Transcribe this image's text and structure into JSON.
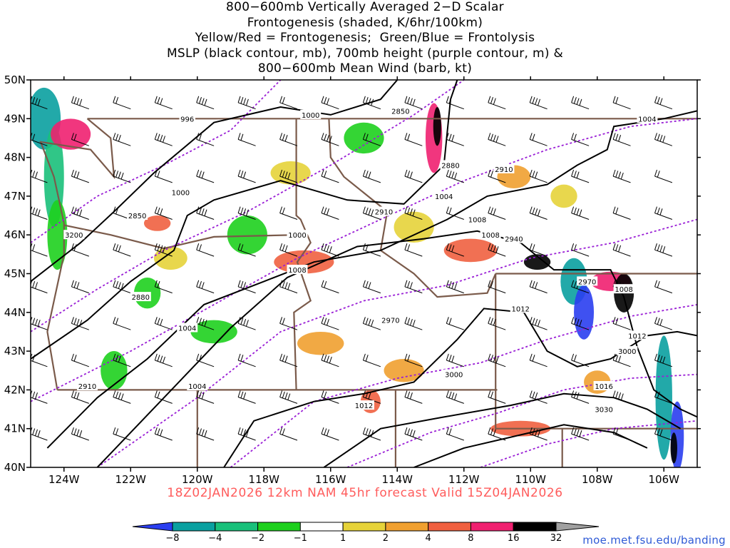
{
  "title_lines": [
    "800−600mb Vertically Averaged 2−D Scalar",
    "Frontogenesis (shaded, K/6hr/100km)",
    "Yellow/Red = Frontogenesis;  Green/Blue = Frontolysis",
    "MSLP (black contour, mb), 700mb height (purple contour, m) &",
    "800−600mb Mean Wind (barb, kt)"
  ],
  "forecast_label": "18Z02JAN2026 12km NAM 45hr forecast Valid 15Z04JAN2026",
  "source_label": "moe.met.fsu.edu/banding",
  "map": {
    "lon_range": [
      -125,
      -105
    ],
    "lat_range": [
      40,
      50
    ],
    "lon_ticks": [
      "124W",
      "122W",
      "120W",
      "118W",
      "116W",
      "114W",
      "112W",
      "110W",
      "108W",
      "106W"
    ],
    "lat_ticks": [
      "50N",
      "49N",
      "48N",
      "47N",
      "46N",
      "45N",
      "44N",
      "43N",
      "42N",
      "41N",
      "40N"
    ],
    "mslp_labels": [
      "996",
      "1000",
      "1000",
      "1004",
      "1008",
      "1000",
      "1004",
      "1008",
      "1012",
      "1004",
      "1008",
      "1012",
      "1016",
      "1012",
      "1004",
      "1008"
    ],
    "height_labels": [
      "2850",
      "2850",
      "2880",
      "2880",
      "2910",
      "2910",
      "2910",
      "2940",
      "2970",
      "2970",
      "3000",
      "3000",
      "3030",
      "3200"
    ],
    "colors": {
      "mslp": "#000000",
      "height": "#9a1fd6",
      "border": "#7a5a4a",
      "barb": "#000000"
    }
  },
  "colorbar": {
    "labels": [
      "−8",
      "−4",
      "−2",
      "−1",
      "1",
      "2",
      "4",
      "8",
      "16",
      "32"
    ],
    "colors": [
      "#2a3ef0",
      "#0aa0a0",
      "#19c07a",
      "#1ed01e",
      "#ffffff",
      "#e6d33a",
      "#f0a030",
      "#f06040",
      "#f02070",
      "#000000",
      "#a0a0a0"
    ]
  }
}
